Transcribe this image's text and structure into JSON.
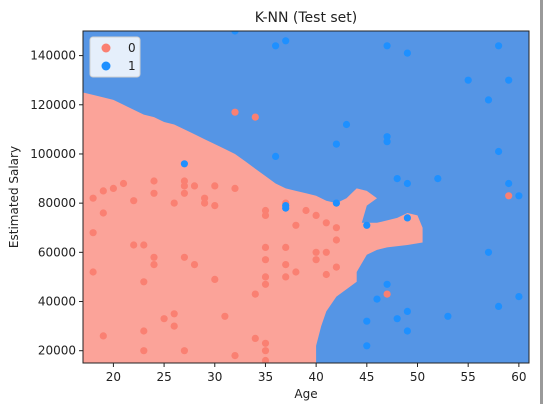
{
  "chart_data": {
    "type": "scatter",
    "title": "K-NN (Test set)",
    "xlabel": "Age",
    "ylabel": "Estimated Salary",
    "xlim": [
      17,
      61
    ],
    "ylim": [
      15000,
      150000
    ],
    "x_ticks": [
      20,
      25,
      30,
      35,
      40,
      45,
      50,
      55,
      60
    ],
    "y_ticks": [
      20000,
      40000,
      60000,
      80000,
      100000,
      120000,
      140000
    ],
    "x_tick_labels": [
      "20",
      "25",
      "30",
      "35",
      "40",
      "45",
      "50",
      "55",
      "60"
    ],
    "y_tick_labels": [
      "20000",
      "40000",
      "60000",
      "80000",
      "100000",
      "120000",
      "140000"
    ],
    "legend": {
      "position": "top-left",
      "entries": [
        "0",
        "1"
      ]
    },
    "colors": {
      "region_0": "#fa8072",
      "region_1": "#1e90ff",
      "point_0": "#fa8072",
      "point_1": "#1e90ff"
    },
    "decision_region_1_boundary": [
      [
        17,
        125000
      ],
      [
        18,
        124000
      ],
      [
        19,
        123000
      ],
      [
        20,
        122000
      ],
      [
        21,
        120000
      ],
      [
        22,
        118000
      ],
      [
        23,
        116000
      ],
      [
        24,
        115000
      ],
      [
        25,
        113000
      ],
      [
        26,
        112000
      ],
      [
        27,
        110000
      ],
      [
        28,
        108000
      ],
      [
        29,
        106000
      ],
      [
        30,
        104000
      ],
      [
        31,
        102000
      ],
      [
        32,
        100000
      ],
      [
        33,
        97000
      ],
      [
        34,
        94000
      ],
      [
        35,
        91000
      ],
      [
        36,
        88000
      ],
      [
        37,
        86000
      ],
      [
        38,
        85000
      ],
      [
        39,
        84000
      ],
      [
        40,
        83000
      ],
      [
        41,
        81000
      ],
      [
        42,
        80000
      ],
      [
        43,
        82000
      ],
      [
        43.5,
        84000
      ],
      [
        44,
        86000
      ],
      [
        45,
        85000
      ],
      [
        46,
        82000
      ],
      [
        45,
        79000
      ],
      [
        44.5,
        72000
      ],
      [
        46,
        72000
      ],
      [
        47,
        73000
      ],
      [
        48,
        74000
      ],
      [
        49,
        76000
      ],
      [
        50,
        75000
      ],
      [
        50.5,
        70000
      ],
      [
        50.5,
        64000
      ],
      [
        49,
        63000
      ],
      [
        47,
        62000
      ],
      [
        46,
        61000
      ],
      [
        45,
        59000
      ],
      [
        44,
        52000
      ],
      [
        44,
        48000
      ],
      [
        43,
        45000
      ],
      [
        42,
        42000
      ],
      [
        41,
        36000
      ],
      [
        40.5,
        30000
      ],
      [
        40,
        22000
      ],
      [
        40,
        15000
      ]
    ],
    "series": [
      {
        "name": "0",
        "points": [
          [
            18,
            52000
          ],
          [
            18,
            68000
          ],
          [
            18,
            82000
          ],
          [
            19,
            26000
          ],
          [
            19,
            76000
          ],
          [
            19,
            85000
          ],
          [
            20,
            86000
          ],
          [
            21,
            88000
          ],
          [
            22,
            63000
          ],
          [
            22,
            81000
          ],
          [
            23,
            20000
          ],
          [
            23,
            28000
          ],
          [
            23,
            48000
          ],
          [
            23,
            63000
          ],
          [
            24,
            55000
          ],
          [
            24,
            58000
          ],
          [
            24,
            84000
          ],
          [
            24,
            89000
          ],
          [
            25,
            33000
          ],
          [
            26,
            30000
          ],
          [
            26,
            35000
          ],
          [
            26,
            80000
          ],
          [
            27,
            20000
          ],
          [
            27,
            58000
          ],
          [
            27,
            84000
          ],
          [
            27,
            87000
          ],
          [
            27,
            89000
          ],
          [
            28,
            55000
          ],
          [
            28,
            87000
          ],
          [
            29,
            80000
          ],
          [
            29,
            82000
          ],
          [
            30,
            49000
          ],
          [
            30,
            79000
          ],
          [
            30,
            87000
          ],
          [
            31,
            34000
          ],
          [
            32,
            18000
          ],
          [
            32,
            86000
          ],
          [
            32,
            117000
          ],
          [
            33,
            13000
          ],
          [
            34,
            25000
          ],
          [
            34,
            43000
          ],
          [
            34,
            115000
          ],
          [
            35,
            16000
          ],
          [
            35,
            20000
          ],
          [
            35,
            23000
          ],
          [
            35,
            47000
          ],
          [
            35,
            50000
          ],
          [
            35,
            57000
          ],
          [
            35,
            62000
          ],
          [
            35,
            75000
          ],
          [
            35,
            77000
          ],
          [
            37,
            50000
          ],
          [
            37,
            55000
          ],
          [
            37,
            62000
          ],
          [
            37,
            80000
          ],
          [
            38,
            52000
          ],
          [
            38,
            71000
          ],
          [
            39,
            77000
          ],
          [
            40,
            57000
          ],
          [
            40,
            60000
          ],
          [
            40,
            75000
          ],
          [
            41,
            51000
          ],
          [
            41,
            60000
          ],
          [
            41,
            72000
          ],
          [
            42,
            54000
          ],
          [
            42,
            65000
          ],
          [
            42,
            70000
          ],
          [
            47,
            43000
          ],
          [
            59,
            83000
          ]
        ]
      },
      {
        "name": "1",
        "points": [
          [
            27,
            96000
          ],
          [
            32,
            150000
          ],
          [
            36,
            99000
          ],
          [
            36,
            144000
          ],
          [
            37,
            78000
          ],
          [
            37,
            79000
          ],
          [
            37,
            146000
          ],
          [
            42,
            80000
          ],
          [
            42,
            104000
          ],
          [
            43,
            112000
          ],
          [
            45,
            22000
          ],
          [
            45,
            32000
          ],
          [
            45,
            71000
          ],
          [
            46,
            41000
          ],
          [
            47,
            47000
          ],
          [
            47,
            105000
          ],
          [
            47,
            107000
          ],
          [
            47,
            144000
          ],
          [
            48,
            33000
          ],
          [
            48,
            90000
          ],
          [
            49,
            28000
          ],
          [
            49,
            36000
          ],
          [
            49,
            74000
          ],
          [
            49,
            88000
          ],
          [
            49,
            141000
          ],
          [
            52,
            90000
          ],
          [
            53,
            34000
          ],
          [
            55,
            130000
          ],
          [
            57,
            60000
          ],
          [
            57,
            122000
          ],
          [
            58,
            38000
          ],
          [
            58,
            101000
          ],
          [
            58,
            144000
          ],
          [
            59,
            88000
          ],
          [
            59,
            130000
          ],
          [
            60,
            42000
          ],
          [
            60,
            83000
          ]
        ]
      }
    ]
  }
}
